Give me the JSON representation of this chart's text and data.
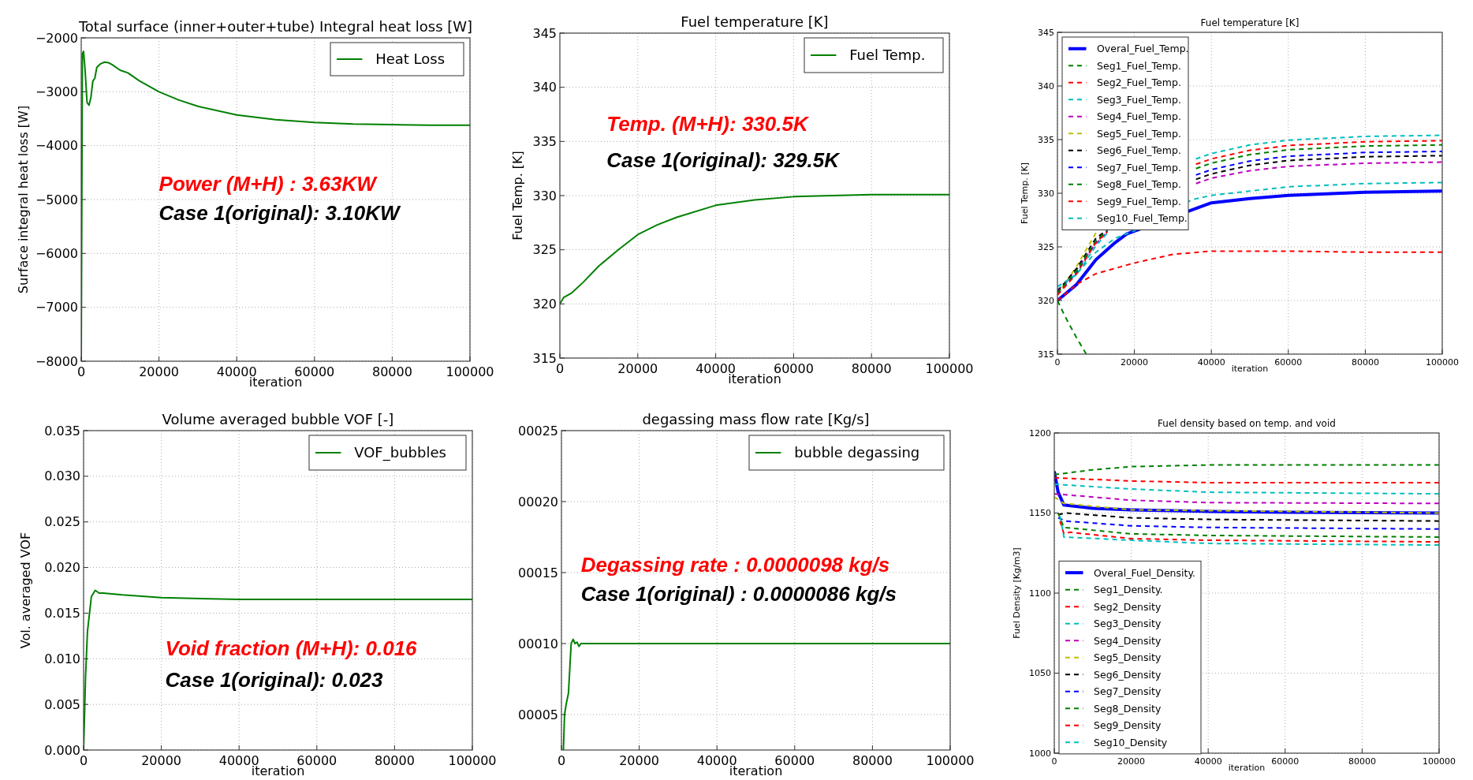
{
  "chart_data": [
    {
      "type": "line",
      "title": "Total surface (inner+outer+tube) Integral heat loss [W]",
      "xlabel": "iteration",
      "ylabel": "Surface integral heat loss [W]",
      "xlim": [
        0,
        100000
      ],
      "ylim": [
        -8000,
        -2000
      ],
      "xticks": [
        0,
        20000,
        40000,
        60000,
        80000,
        100000
      ],
      "yticks": [
        {
          "value": -8000,
          "label": "−8000"
        },
        {
          "value": -7000,
          "label": "−7000"
        },
        {
          "value": -6000,
          "label": "−6000"
        },
        {
          "value": -5000,
          "label": "−5000"
        },
        {
          "value": -4000,
          "label": "−4000"
        },
        {
          "value": -3000,
          "label": "−3000"
        },
        {
          "value": -2000,
          "label": "−2000"
        }
      ],
      "grid": true,
      "legend": "top right",
      "line_style": "solid",
      "annotations": [
        "Power (M+H) : 3.63KW",
        "Case 1(original): 3.10KW"
      ],
      "series": [
        {
          "name": "Heat Loss",
          "color": "#008000",
          "x": [
            0,
            300,
            600,
            1000,
            1500,
            2000,
            2500,
            3000,
            3500,
            4000,
            5000,
            6000,
            7000,
            8000,
            10000,
            12000,
            15000,
            20000,
            25000,
            30000,
            40000,
            50000,
            60000,
            70000,
            80000,
            90000,
            100000
          ],
          "values": [
            -8000,
            -2300,
            -2250,
            -2600,
            -3200,
            -3250,
            -3100,
            -2800,
            -2750,
            -2550,
            -2480,
            -2450,
            -2460,
            -2500,
            -2600,
            -2650,
            -2800,
            -3000,
            -3150,
            -3270,
            -3430,
            -3520,
            -3570,
            -3600,
            -3610,
            -3620,
            -3620
          ]
        }
      ]
    },
    {
      "type": "line",
      "title": "Fuel temperature [K]",
      "xlabel": "iteration",
      "ylabel": "Fuel Temp. [K]",
      "xlim": [
        0,
        100000
      ],
      "ylim": [
        315,
        345
      ],
      "xticks": [
        0,
        20000,
        40000,
        60000,
        80000,
        100000
      ],
      "yticks": [
        315,
        320,
        325,
        330,
        335,
        340,
        345
      ],
      "grid": true,
      "legend": "top right",
      "line_style": "solid",
      "annotations": [
        "Temp.  (M+H): 330.5K",
        "Case 1(original): 329.5K"
      ],
      "series": [
        {
          "name": "Fuel Temp.",
          "color": "#008000",
          "x": [
            0,
            1000,
            3000,
            6000,
            10000,
            15000,
            20000,
            25000,
            30000,
            40000,
            50000,
            60000,
            70000,
            80000,
            100000
          ],
          "values": [
            320,
            320.6,
            321,
            322,
            323.5,
            325,
            326.4,
            327.3,
            328,
            329.1,
            329.6,
            329.9,
            330,
            330.1,
            330.1
          ]
        }
      ]
    },
    {
      "type": "line",
      "title": "Fuel temperature [K]",
      "xlabel": "iteration",
      "ylabel": "Fuel Temp. [K]",
      "xlim": [
        0,
        100000
      ],
      "ylim": [
        315,
        345
      ],
      "xticks": [
        0,
        20000,
        40000,
        60000,
        80000,
        100000
      ],
      "yticks": [
        315,
        320,
        325,
        330,
        335,
        340,
        345
      ],
      "grid": true,
      "legend": "top left",
      "series": [
        {
          "name": "Overal_Fuel_Temp.",
          "color": "#0000ff",
          "line_style": "solid",
          "x": [
            0,
            5000,
            10000,
            15000,
            18000,
            40000,
            50000,
            60000,
            80000,
            100000
          ],
          "values": [
            320,
            321.5,
            323.8,
            325.4,
            326.2,
            329.1,
            329.5,
            329.8,
            330.1,
            330.2
          ]
        },
        {
          "name": "Seg1_Fuel_Temp.",
          "color": "#008000",
          "line_style": "dashed",
          "x": [
            0,
            2000,
            5000,
            7500
          ],
          "values": [
            320,
            318.5,
            316.5,
            315
          ]
        },
        {
          "name": "Seg2_Fuel_Temp.",
          "color": "#ff0000",
          "line_style": "dashed",
          "x": [
            0,
            5000,
            10000,
            20000,
            30000,
            40000,
            60000,
            80000,
            100000
          ],
          "values": [
            320,
            321.5,
            322.5,
            323.5,
            324.3,
            324.6,
            324.6,
            324.5,
            324.5
          ]
        },
        {
          "name": "Seg3_Fuel_Temp.",
          "color": "#00bfbf",
          "line_style": "dashed",
          "x": [
            0,
            5000,
            10000,
            15000,
            20000,
            35000,
            40000,
            60000,
            80000,
            100000
          ],
          "values": [
            321,
            322.5,
            324.5,
            325.8,
            326.5,
            329.4,
            329.8,
            330.6,
            330.9,
            331
          ]
        },
        {
          "name": "Seg4_Fuel_Temp.",
          "color": "#bf00bf",
          "line_style": "dashed",
          "x": [
            0,
            5000,
            10000,
            13000,
            25000,
            36000,
            40000,
            50000,
            60000,
            80000,
            100000
          ],
          "values": [
            320.9,
            322.9,
            325.3,
            326.4,
            null,
            330.9,
            331.4,
            332.1,
            332.5,
            332.8,
            332.9
          ]
        },
        {
          "name": "Seg5_Fuel_Temp.",
          "color": "#bfbf00",
          "line_style": "dashed",
          "x": [
            0,
            5000,
            10000
          ],
          "values": [
            320.5,
            323.2,
            326.3
          ]
        },
        {
          "name": "Seg6_Fuel_Temp.",
          "color": "#000000",
          "line_style": "dashed",
          "x": [
            0,
            5000,
            10000,
            13000,
            25000,
            36000,
            40000,
            50000,
            60000,
            80000,
            100000
          ],
          "values": [
            320.8,
            323,
            325.8,
            326.6,
            null,
            331.3,
            331.8,
            332.6,
            333.05,
            333.4,
            333.5
          ]
        },
        {
          "name": "Seg7_Fuel_Temp.",
          "color": "#0000ff",
          "line_style": "dashed",
          "x": [
            0,
            5000,
            10000,
            13000,
            25000,
            36000,
            40000,
            50000,
            60000,
            80000,
            100000
          ],
          "values": [
            320.6,
            322.6,
            325.5,
            326.5,
            null,
            331.7,
            332.2,
            333,
            333.45,
            333.8,
            333.9
          ]
        },
        {
          "name": "Seg8_Fuel_Temp.",
          "color": "#008000",
          "line_style": "dashed",
          "x": [
            0,
            5000,
            10000,
            13000,
            25000,
            36000,
            40000,
            50000,
            60000,
            80000,
            100000
          ],
          "values": [
            320.7,
            322.8,
            325.6,
            326.5,
            null,
            332.3,
            332.8,
            333.6,
            334.05,
            334.4,
            334.5
          ]
        },
        {
          "name": "Seg9_Fuel_Temp.",
          "color": "#ff0000",
          "line_style": "dashed",
          "x": [
            0,
            5000,
            10000,
            13000,
            25000,
            36000,
            40000,
            50000,
            60000,
            80000,
            100000
          ],
          "values": [
            320.5,
            322.5,
            325.4,
            326.4,
            null,
            332.7,
            333.2,
            334,
            334.45,
            334.8,
            334.9
          ]
        },
        {
          "name": "Seg10_Fuel_Temp.",
          "color": "#00bfbf",
          "line_style": "dashed",
          "x": [
            0,
            5000,
            10000,
            13000,
            25000,
            36000,
            40000,
            50000,
            60000,
            80000,
            100000
          ],
          "values": [
            321.3,
            322.4,
            325.1,
            326.3,
            null,
            333.2,
            333.7,
            334.5,
            334.95,
            335.3,
            335.4
          ]
        }
      ]
    },
    {
      "type": "line",
      "title": "Volume averaged bubble VOF [-]",
      "xlabel": "iteration",
      "ylabel": "Vol. averaged VOF",
      "xlim": [
        0,
        100000
      ],
      "ylim": [
        0,
        0.035
      ],
      "xticks": [
        0,
        20000,
        40000,
        60000,
        80000,
        100000
      ],
      "yticks": [
        {
          "value": 0,
          "label": "0.000"
        },
        {
          "value": 0.005,
          "label": "0.005"
        },
        {
          "value": 0.01,
          "label": "0.010"
        },
        {
          "value": 0.015,
          "label": "0.015"
        },
        {
          "value": 0.02,
          "label": "0.020"
        },
        {
          "value": 0.025,
          "label": "0.025"
        },
        {
          "value": 0.03,
          "label": "0.030"
        },
        {
          "value": 0.035,
          "label": "0.035"
        }
      ],
      "grid": true,
      "legend": "top right",
      "line_style": "solid",
      "annotations": [
        "Void fraction (M+H): 0.016",
        "Case 1(original): 0.023"
      ],
      "series": [
        {
          "name": "VOF_bubbles",
          "color": "#008000",
          "x": [
            0,
            500,
            1000,
            2000,
            3000,
            4000,
            5000,
            10000,
            20000,
            40000,
            100000
          ],
          "values": [
            0,
            0.008,
            0.013,
            0.0168,
            0.0175,
            0.0172,
            0.0172,
            0.017,
            0.0167,
            0.0165,
            0.0165
          ]
        }
      ]
    },
    {
      "type": "line",
      "title": "degassing mass flow rate [Kg/s]",
      "xlabel": "iteration",
      "xlim": [
        0,
        100000
      ],
      "ylim": [
        2.5,
        25
      ],
      "xticks": [
        0,
        20000,
        40000,
        60000,
        80000,
        100000
      ],
      "yticks": [
        {
          "value": 5,
          "label": "00005"
        },
        {
          "value": 10,
          "label": "00010"
        },
        {
          "value": 15,
          "label": "00015"
        },
        {
          "value": 20,
          "label": "00020"
        },
        {
          "value": 25,
          "label": "00025"
        }
      ],
      "grid": true,
      "legend": "top right",
      "line_style": "solid",
      "annotations": [
        "Degassing rate : 0.0000098 kg/s",
        "Case 1(original) : 0.0000086 kg/s"
      ],
      "series": [
        {
          "name": "bubble degassing",
          "color": "#008000",
          "x": [
            500,
            800,
            1200,
            1800,
            2500,
            3000,
            3500,
            4000,
            4500,
            5000,
            10000,
            100000
          ],
          "values": [
            2.5,
            5,
            5.7,
            6.5,
            10,
            10.3,
            10,
            10.1,
            9.8,
            10,
            10,
            10
          ]
        }
      ]
    },
    {
      "type": "line",
      "title": "Fuel density based on temp. and void",
      "xlabel": "iteration",
      "ylabel": "Fuel Density [Kg/m3]",
      "xlim": [
        0,
        100000
      ],
      "ylim": [
        1000,
        1200
      ],
      "xticks": [
        0,
        20000,
        40000,
        60000,
        80000,
        100000
      ],
      "yticks": [
        1000,
        1050,
        1100,
        1150,
        1200
      ],
      "grid": true,
      "legend": "bottom left",
      "series": [
        {
          "name": "Overal_Fuel_Density.",
          "color": "#0000ff",
          "line_style": "solid",
          "x": [
            0,
            1000,
            2500,
            10000,
            20000,
            40000,
            60000,
            100000
          ],
          "values": [
            1176,
            1163,
            1155,
            1153,
            1152,
            1151,
            1150.5,
            1150
          ]
        },
        {
          "name": "Seg1_Density.",
          "color": "#008000",
          "line_style": "dashed",
          "x": [
            0,
            10000,
            20000,
            40000,
            100000
          ],
          "values": [
            1174,
            1177,
            1179,
            1180,
            1180
          ]
        },
        {
          "name": "Seg2_Density",
          "color": "#ff0000",
          "line_style": "dashed",
          "x": [
            0,
            20000,
            40000,
            100000
          ],
          "values": [
            1172,
            1170,
            1169,
            1169
          ]
        },
        {
          "name": "Seg3_Density",
          "color": "#00bfbf",
          "line_style": "dashed",
          "x": [
            0,
            20000,
            40000,
            100000
          ],
          "values": [
            1168,
            1165,
            1163,
            1162
          ]
        },
        {
          "name": "Seg4_Density",
          "color": "#bf00bf",
          "line_style": "dashed",
          "x": [
            0,
            20000,
            40000,
            100000
          ],
          "values": [
            1162,
            1158,
            1156.5,
            1156
          ]
        },
        {
          "name": "Seg5_Density",
          "color": "#bfbf00",
          "line_style": "dashed",
          "x": [
            0,
            2500,
            20000,
            100000
          ],
          "values": [
            1160,
            1156,
            1152,
            1150
          ]
        },
        {
          "name": "Seg6_Density",
          "color": "#000000",
          "line_style": "dashed",
          "x": [
            1000,
            3000,
            20000,
            40000,
            100000
          ],
          "values": [
            1149,
            1150,
            1147,
            1146,
            1145
          ]
        },
        {
          "name": "Seg7_Density",
          "color": "#0000ff",
          "line_style": "dashed",
          "x": [
            1000,
            3000,
            20000,
            40000,
            100000
          ],
          "values": [
            1147,
            1145,
            1142,
            1141,
            1140
          ]
        },
        {
          "name": "Seg8_Density",
          "color": "#008000",
          "line_style": "dashed",
          "x": [
            1000,
            2500,
            20000,
            40000,
            100000
          ],
          "values": [
            1150,
            1141,
            1137,
            1136,
            1135
          ]
        },
        {
          "name": "Seg9_Density",
          "color": "#ff0000",
          "line_style": "dashed",
          "x": [
            1500,
            2500,
            4000,
            20000,
            40000,
            100000
          ],
          "values": [
            1145,
            1137,
            1138,
            1134,
            1133,
            1132
          ]
        },
        {
          "name": "Seg10_Density",
          "color": "#00bfbf",
          "line_style": "dashed",
          "x": [
            1500,
            2500,
            20000,
            40000,
            100000
          ],
          "values": [
            1148,
            1135,
            1133,
            1131,
            1130
          ]
        }
      ]
    }
  ]
}
